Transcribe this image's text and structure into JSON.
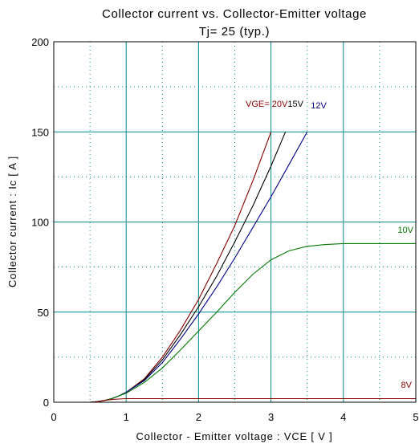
{
  "chart_data": {
    "type": "line",
    "title": "Collector current   vs.   Collector-Emitter voltage",
    "subtitle": "Tj= 25      (typ.)",
    "xlabel": "Collector  - Emitter voltage  :  VCE  [ V ]",
    "ylabel": "Collector current  :  Ic  [ A ]",
    "xlim": [
      0,
      5
    ],
    "ylim": [
      0,
      200
    ],
    "xticks": [
      0,
      1,
      2,
      3,
      4,
      5
    ],
    "yticks": [
      0,
      50,
      100,
      150,
      200
    ],
    "xtick_labels": [
      "0",
      "1",
      "2",
      "3",
      "4",
      "5"
    ],
    "ytick_labels": [
      "0",
      "50",
      "100",
      "150",
      "200"
    ],
    "grid": true,
    "series": [
      {
        "name": "VGE= 20V",
        "color": "#8b0000",
        "x": [
          0.5,
          0.6,
          0.7,
          0.8,
          0.9,
          1.0,
          1.25,
          1.5,
          1.75,
          2.0,
          2.25,
          2.5,
          2.75,
          3.0
        ],
        "y": [
          0,
          0.3,
          1,
          2,
          3.5,
          5.5,
          13,
          25,
          40,
          57,
          77,
          98,
          123,
          150
        ]
      },
      {
        "name": "15V",
        "color": "#000000",
        "x": [
          0.5,
          0.6,
          0.7,
          0.8,
          0.9,
          1.0,
          1.25,
          1.5,
          1.75,
          2.0,
          2.25,
          2.5,
          2.75,
          3.0,
          3.2
        ],
        "y": [
          0,
          0.3,
          1,
          2,
          3.5,
          5.5,
          12.5,
          23.5,
          37.5,
          53,
          70,
          89,
          109,
          131,
          150
        ]
      },
      {
        "name": "12V",
        "color": "#00008b",
        "x": [
          0.5,
          0.6,
          0.7,
          0.8,
          0.9,
          1.0,
          1.25,
          1.5,
          1.75,
          2.0,
          2.25,
          2.5,
          2.75,
          3.0,
          3.25,
          3.5
        ],
        "y": [
          0,
          0.3,
          1,
          2,
          3.5,
          5.5,
          12,
          22,
          35,
          49,
          64,
          80,
          97,
          114,
          132,
          150
        ]
      },
      {
        "name": "10V",
        "color": "#007a00",
        "x": [
          0.5,
          0.6,
          0.7,
          0.8,
          0.9,
          1.0,
          1.25,
          1.5,
          1.75,
          2.0,
          2.25,
          2.5,
          2.75,
          3.0,
          3.25,
          3.5,
          3.75,
          4.0,
          4.5,
          5.0
        ],
        "y": [
          0,
          0.3,
          1,
          2,
          3.5,
          5,
          11,
          19,
          29,
          39.5,
          50,
          61,
          71,
          79,
          84,
          86.5,
          87.5,
          88,
          88,
          88
        ]
      },
      {
        "name": "8V",
        "color": "#8b0000",
        "x": [
          0.5,
          0.6,
          0.7,
          0.8,
          0.9,
          1.0,
          1.5,
          2.0,
          3.0,
          4.0,
          5.0
        ],
        "y": [
          0,
          0.3,
          1,
          1.5,
          1.8,
          2,
          2,
          2,
          2,
          2,
          2
        ]
      }
    ]
  }
}
